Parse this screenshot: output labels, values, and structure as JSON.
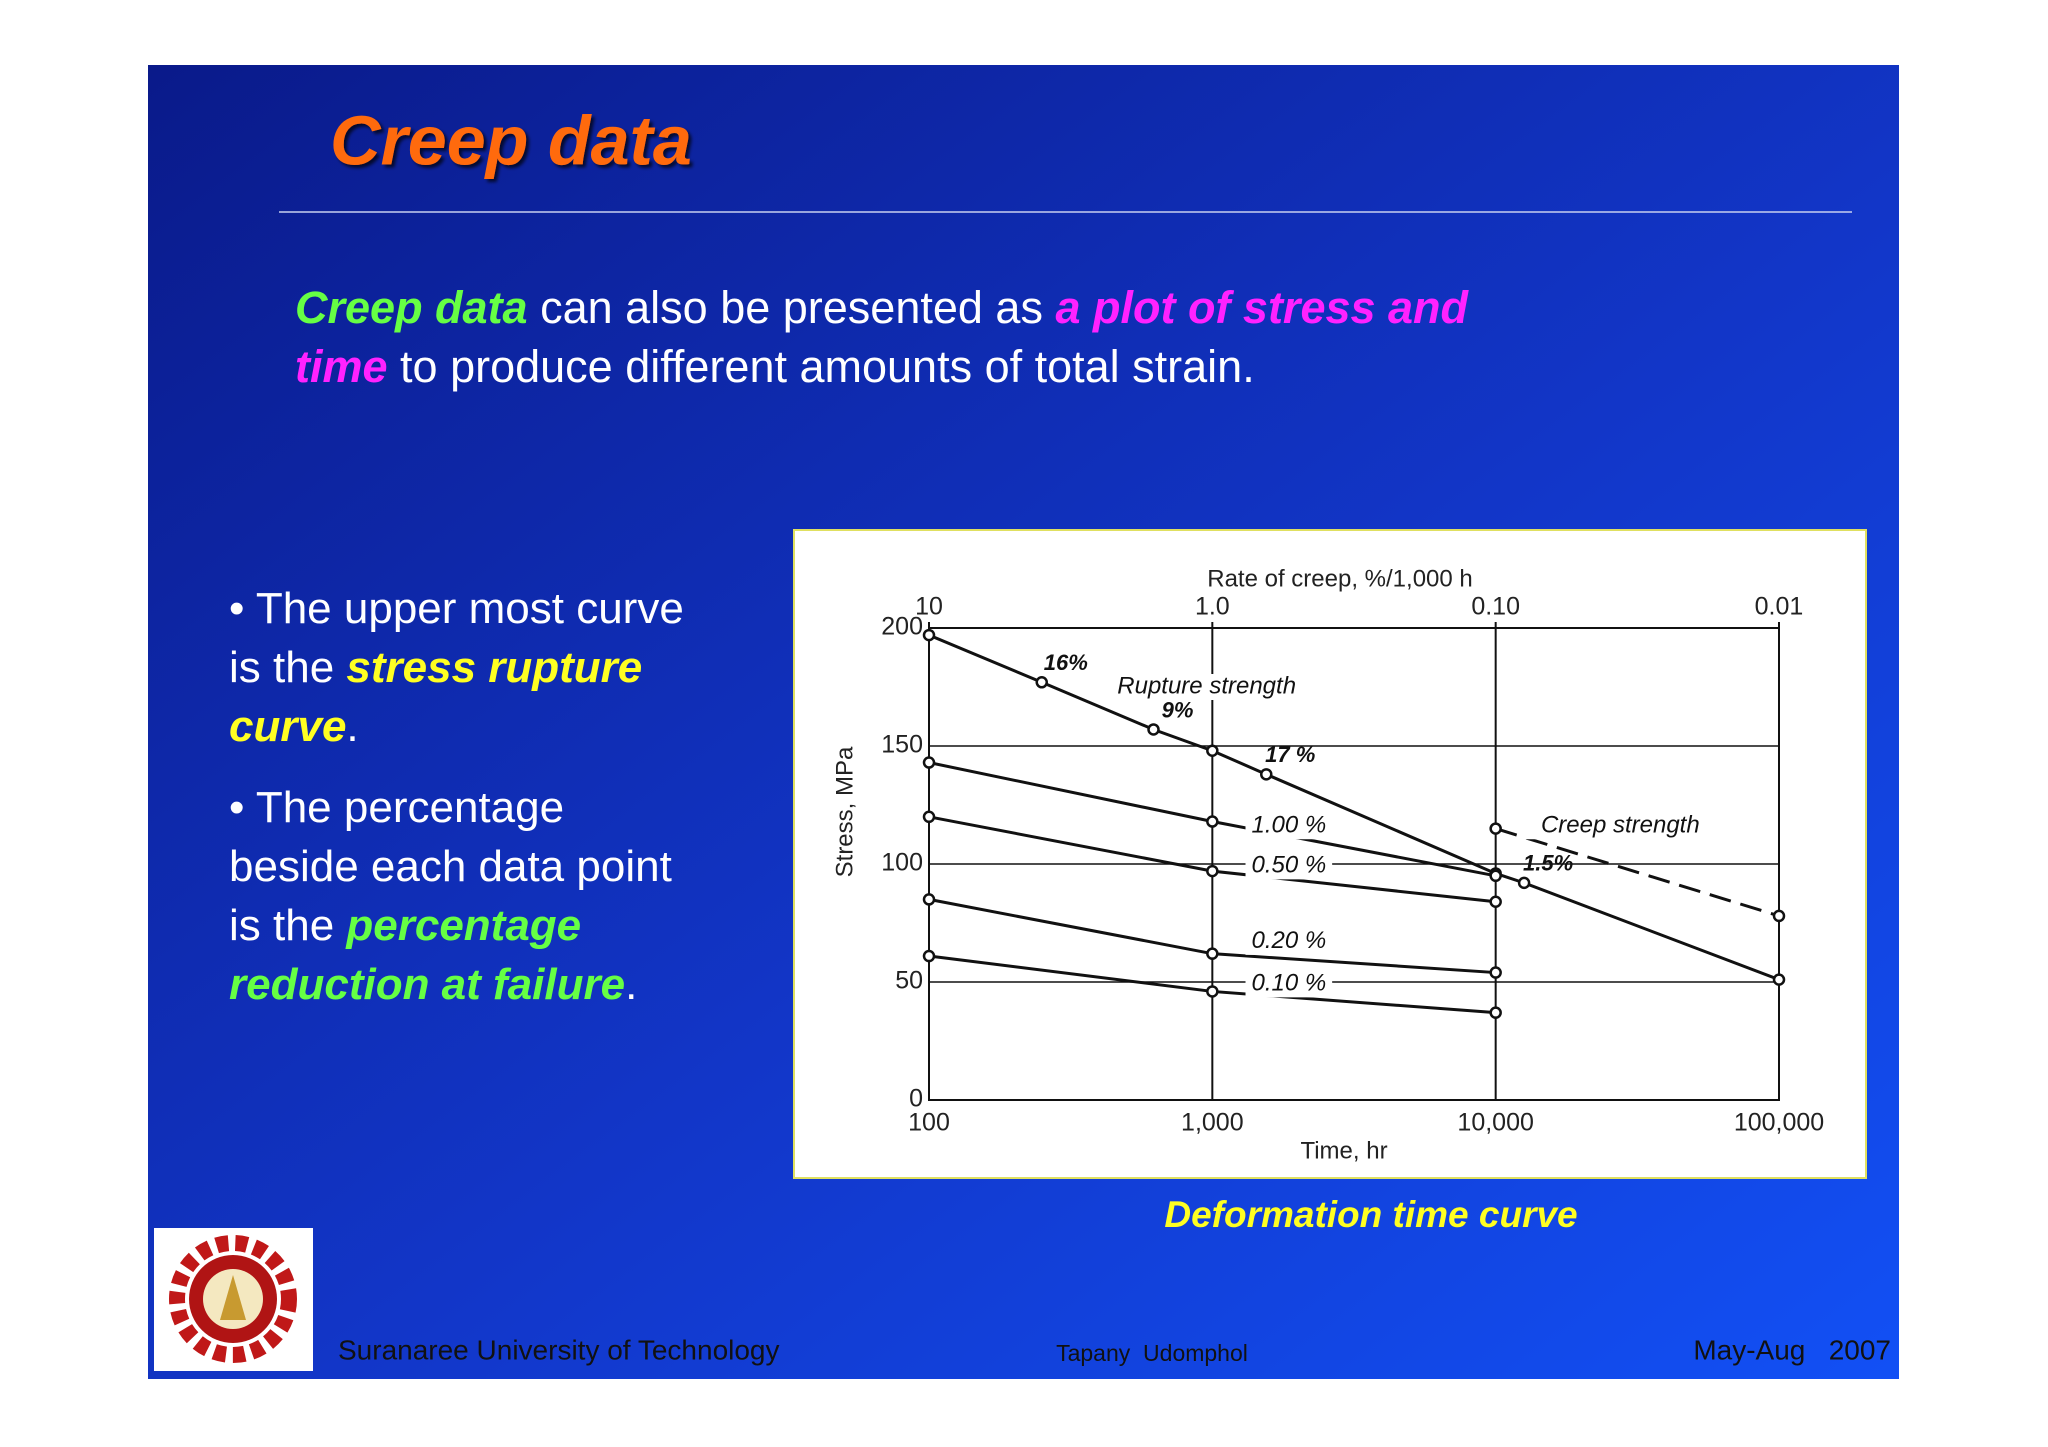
{
  "header": {
    "title": "Creep data"
  },
  "intro": [
    [
      {
        "text": "Creep data",
        "color": "#66ff44",
        "emphasis": true
      },
      {
        "text": " can also be presented as ",
        "color": "#ffffff",
        "emphasis": false
      },
      {
        "text": "a plot of stress and",
        "color": "#ff22ff",
        "emphasis": true
      }
    ],
    [
      {
        "text": "time",
        "color": "#ff22ff",
        "emphasis": true
      },
      {
        "text": " to produce different amounts of total strain.",
        "color": "#ffffff",
        "emphasis": false
      }
    ]
  ],
  "bullets": [
    [
      [
        {
          "text": "• The upper most curve",
          "color": "#ffffff",
          "emphasis": false
        }
      ],
      [
        {
          "text": "is the ",
          "color": "#ffffff",
          "emphasis": false
        },
        {
          "text": "stress rupture",
          "color": "#ffff22",
          "emphasis": true
        }
      ],
      [
        {
          "text": "curve",
          "color": "#ffff22",
          "emphasis": true
        },
        {
          "text": ".",
          "color": "#ffffff",
          "emphasis": false
        }
      ]
    ],
    [
      [
        {
          "text": "• The percentage",
          "color": "#ffffff",
          "emphasis": false
        }
      ],
      [
        {
          "text": "beside each data point",
          "color": "#ffffff",
          "emphasis": false
        }
      ],
      [
        {
          "text": "is the ",
          "color": "#ffffff",
          "emphasis": false
        },
        {
          "text": "percentage",
          "color": "#66ff44",
          "emphasis": true
        }
      ],
      [
        {
          "text": "reduction at failure",
          "color": "#66ff44",
          "emphasis": true
        },
        {
          "text": ".",
          "color": "#ffffff",
          "emphasis": false
        }
      ]
    ]
  ],
  "chart_data": {
    "type": "line",
    "x_label": "Time, hr",
    "y_label": "Stress, MPa",
    "x2_label": "Rate of creep, %/1,000 h",
    "xscale": "log",
    "xlim": [
      100,
      100000
    ],
    "xticks": [
      100,
      {
        "value": 1000,
        "label": "1,000"
      },
      {
        "value": 10000,
        "label": "10,000"
      },
      {
        "value": 100000,
        "label": "100,000"
      }
    ],
    "x2scale": "log",
    "x2lim": [
      10,
      0.01
    ],
    "x2ticks": [
      10,
      {
        "value": 1,
        "label": "1.0"
      },
      {
        "value": 0.1,
        "label": "0.10"
      },
      0.01
    ],
    "ylim": [
      0,
      200
    ],
    "yticks": [
      0,
      50,
      100,
      150,
      200
    ],
    "grid": true,
    "color": "#111111",
    "series": [
      {
        "name": "Rupture strength",
        "dashed": false,
        "x": [
          100,
          250,
          620,
          1000,
          1550,
          10000,
          12600,
          100000
        ],
        "values": [
          197,
          177,
          157,
          148,
          138,
          96,
          92,
          51
        ],
        "point_labels": [
          null,
          "16%",
          "9%",
          null,
          "17 %",
          null,
          "1.5%",
          null
        ]
      },
      {
        "name": "1.00 %",
        "dashed": false,
        "x": [
          100,
          1000,
          10000
        ],
        "values": [
          143,
          118,
          95
        ]
      },
      {
        "name": "0.50 %",
        "dashed": false,
        "x": [
          100,
          1000,
          10000
        ],
        "values": [
          120,
          97,
          84
        ]
      },
      {
        "name": "0.20 %",
        "dashed": false,
        "x": [
          100,
          1000,
          10000
        ],
        "values": [
          85,
          62,
          54
        ]
      },
      {
        "name": "0.10 %",
        "dashed": false,
        "x": [
          100,
          1000,
          10000
        ],
        "values": [
          61,
          46,
          37
        ]
      },
      {
        "name": "Creep strength",
        "dashed": true,
        "x": [
          10000,
          100000
        ],
        "values": [
          115,
          78
        ]
      }
    ]
  },
  "caption": "Deformation time curve",
  "footer": {
    "institution": "Suranaree University of Technology",
    "author": "Tapany  Udomphol",
    "date": "May-Aug   2007"
  }
}
